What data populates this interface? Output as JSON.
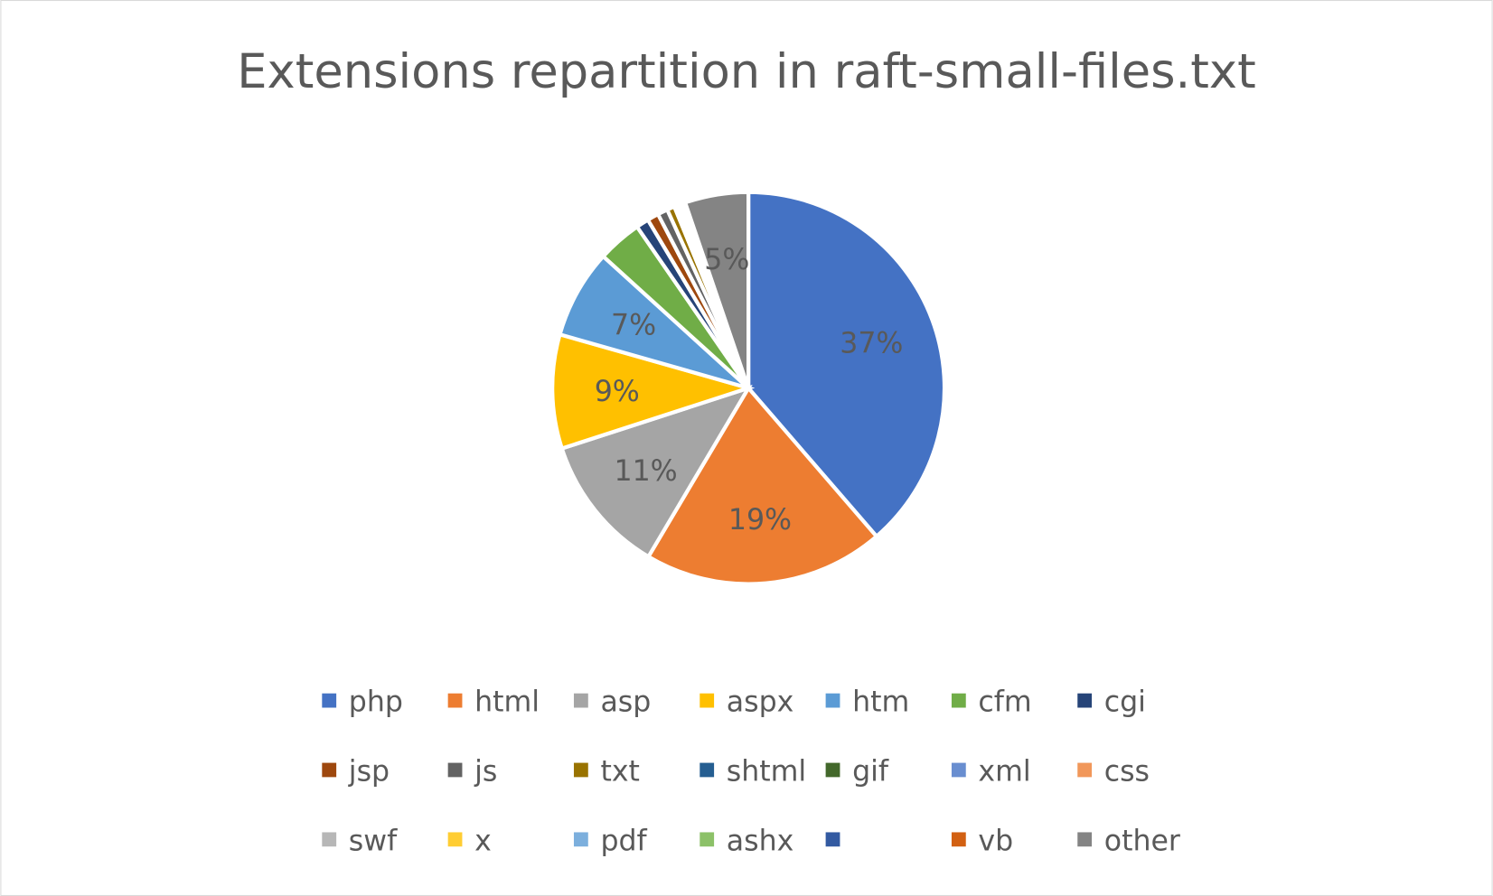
{
  "chart_data": {
    "type": "pie",
    "title": "Extensions repartition in raft-small-files.txt",
    "start_angle": "12 o'clock, clockwise",
    "legend_position": "bottom",
    "data_labels": "percent (shown for slices of 5% and above)",
    "slices": [
      {
        "label": "php",
        "value": 37,
        "color": "#4472C4"
      },
      {
        "label": "html",
        "value": 19,
        "color": "#ED7D31"
      },
      {
        "label": "asp",
        "value": 11,
        "color": "#A5A5A5"
      },
      {
        "label": "aspx",
        "value": 9,
        "color": "#FFC000"
      },
      {
        "label": "htm",
        "value": 7,
        "color": "#5B9BD5"
      },
      {
        "label": "cfm",
        "value": 3.5,
        "color": "#70AD47"
      },
      {
        "label": "cgi",
        "value": 1,
        "color": "#264478"
      },
      {
        "label": "jsp",
        "value": 0.9,
        "color": "#9E480E"
      },
      {
        "label": "js",
        "value": 0.8,
        "color": "#636363"
      },
      {
        "label": "txt",
        "value": 0.6,
        "color": "#997300"
      },
      {
        "label": "shtml",
        "value": 0.3,
        "color": "#255E91"
      },
      {
        "label": "gif",
        "value": 0.1,
        "color": "#43682B"
      },
      {
        "label": "xml",
        "value": 0.1,
        "color": "#698ED0"
      },
      {
        "label": "css",
        "value": 0.1,
        "color": "#F1975A"
      },
      {
        "label": "swf",
        "value": 0.05,
        "color": "#B7B7B7"
      },
      {
        "label": "x",
        "value": 0.05,
        "color": "#FFCD33"
      },
      {
        "label": "pdf",
        "value": 0.05,
        "color": "#7CAFDD"
      },
      {
        "label": "ashx",
        "value": 0.05,
        "color": "#8CC168"
      },
      {
        "label": "",
        "value": 0.05,
        "color": "#335AA1"
      },
      {
        "label": "vb",
        "value": 0.05,
        "color": "#D26012"
      },
      {
        "label": "other",
        "value": 5,
        "color": "#848484"
      }
    ],
    "data_label_texts": [
      "37%",
      "19%",
      "11%",
      "9%",
      "7%",
      "5%"
    ]
  }
}
